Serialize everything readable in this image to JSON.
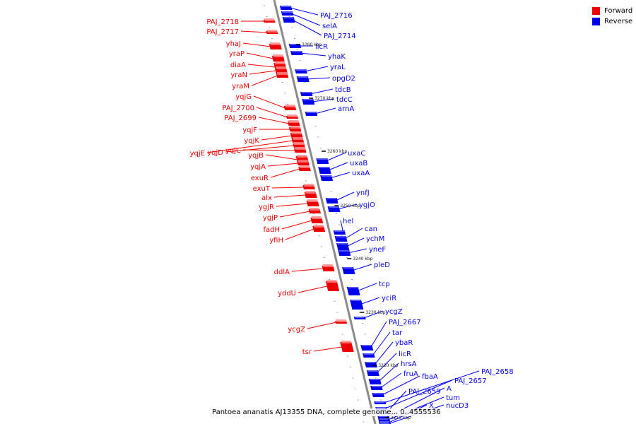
{
  "legend": {
    "forward_label": "Forward",
    "reverse_label": "Reverse",
    "forward_color": "#ee0000",
    "reverse_color": "#0000ee"
  },
  "caption": "Pantoea ananatis AJ13355 DNA, complete genome... 0..4555536",
  "scale_ticks": [
    {
      "label": "3280 kbp"
    },
    {
      "label": "3270 kbp"
    },
    {
      "label": "3260 kbp"
    },
    {
      "label": "3250 kbp"
    },
    {
      "label": "3240 kbp"
    },
    {
      "label": "3230 kbp"
    },
    {
      "label": "3220 kbp"
    },
    {
      "label": "3210 kbp"
    }
  ],
  "forward_genes": [
    "PAJ_2718",
    "PAJ_2717",
    "yhaJ",
    "yraP",
    "diaA",
    "yraN",
    "yraM",
    "yqjG",
    "PAJ_2700",
    "PAJ_2699",
    "yqjF",
    "yqjK",
    "yqjE",
    "yqjD",
    "yqjC",
    "yqjB",
    "yqjA",
    "exuR",
    "exuT",
    "alx",
    "ygjR",
    "ygjP",
    "fadH",
    "yfiH",
    "ddlA",
    "yddU",
    "ycgZ",
    "tsr"
  ],
  "reverse_genes": [
    "PAJ_2716",
    "selA",
    "PAJ_2714",
    "licR",
    "yhaK",
    "yraL",
    "opgD2",
    "tdcB",
    "tdcC",
    "arnA",
    "uxaC",
    "uxaB",
    "uxaA",
    "ynfJ",
    "ygjO",
    "hel",
    "can",
    "ychM",
    "yneF",
    "pleD",
    "tcp",
    "yciR",
    "ycgZ",
    "PAJ_2667",
    "tar",
    "ybaR",
    "licR",
    "hrsA",
    "fruA",
    "fbaA",
    "PAJ_2658",
    "PAJ_2657",
    "PAJ_2659",
    "A",
    "tum",
    "X",
    "nucD3"
  ]
}
